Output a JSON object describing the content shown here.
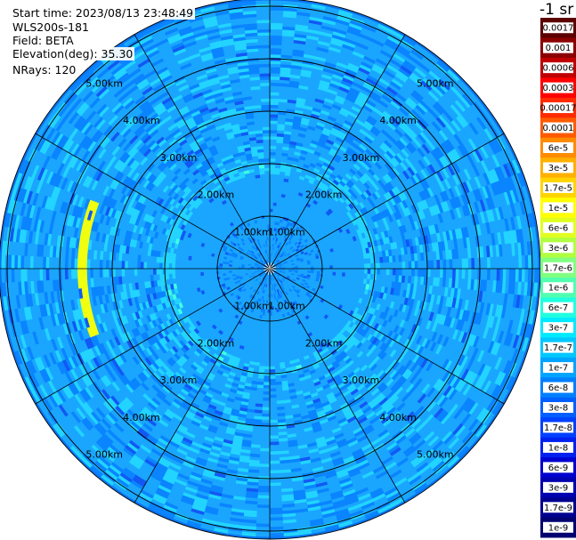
{
  "header": {
    "start_time": "Start time: 2023/08/13 23:48:49",
    "instrument": "WLS200s-181",
    "field": "Field: BETA",
    "elevation": "Elevation(deg): 35.30",
    "nrays": "NRays: 120"
  },
  "colorbar": {
    "title": "-1 sr",
    "labels": [
      "0.0017",
      "0.001",
      "0.0006",
      "0.0003",
      "0.00017",
      "0.0001",
      "6e-5",
      "3e-5",
      "1.7e-5",
      "1e-5",
      "6e-6",
      "3e-6",
      "1.7e-6",
      "1e-6",
      "6e-7",
      "3e-7",
      "1.7e-7",
      "1e-7",
      "6e-8",
      "3e-8",
      "1.7e-8",
      "1e-8",
      "6e-9",
      "3e-9",
      "1.7e-9",
      "1e-9"
    ],
    "colors": [
      "#5c0000",
      "#8b0000",
      "#c00000",
      "#ff0000",
      "#ff2a00",
      "#ff5a00",
      "#ff8c00",
      "#ffb000",
      "#ffd400",
      "#ffff00",
      "#e0ff20",
      "#b0ff40",
      "#80ff80",
      "#50ffb0",
      "#20ffe0",
      "#00eaff",
      "#00c8ff",
      "#00a4ff",
      "#0080ff",
      "#0060ff",
      "#0040ff",
      "#0020f0",
      "#0000d0",
      "#0000b0",
      "#000090",
      "#000070"
    ]
  },
  "chart_data": {
    "type": "heatmap",
    "projection": "polar (PPI scan)",
    "field": "BETA",
    "units": "sr-1",
    "elevation_deg": 35.3,
    "n_rays": 120,
    "range_rings_km": [
      1.0,
      2.0,
      3.0,
      4.0,
      5.0
    ],
    "ring_labels": [
      "1.00km",
      "2.00km",
      "3.00km",
      "4.00km",
      "5.00km"
    ],
    "max_range_km": 5.1,
    "radial_spacing_deg": 30,
    "colorscale": "log",
    "typical_value_range": [
      1e-08,
      1e-06
    ],
    "features": [
      {
        "azimuth_deg": 270,
        "range_km": [
          3.45,
          3.65
        ],
        "beta_approx": 1.7e-06
      }
    ]
  }
}
